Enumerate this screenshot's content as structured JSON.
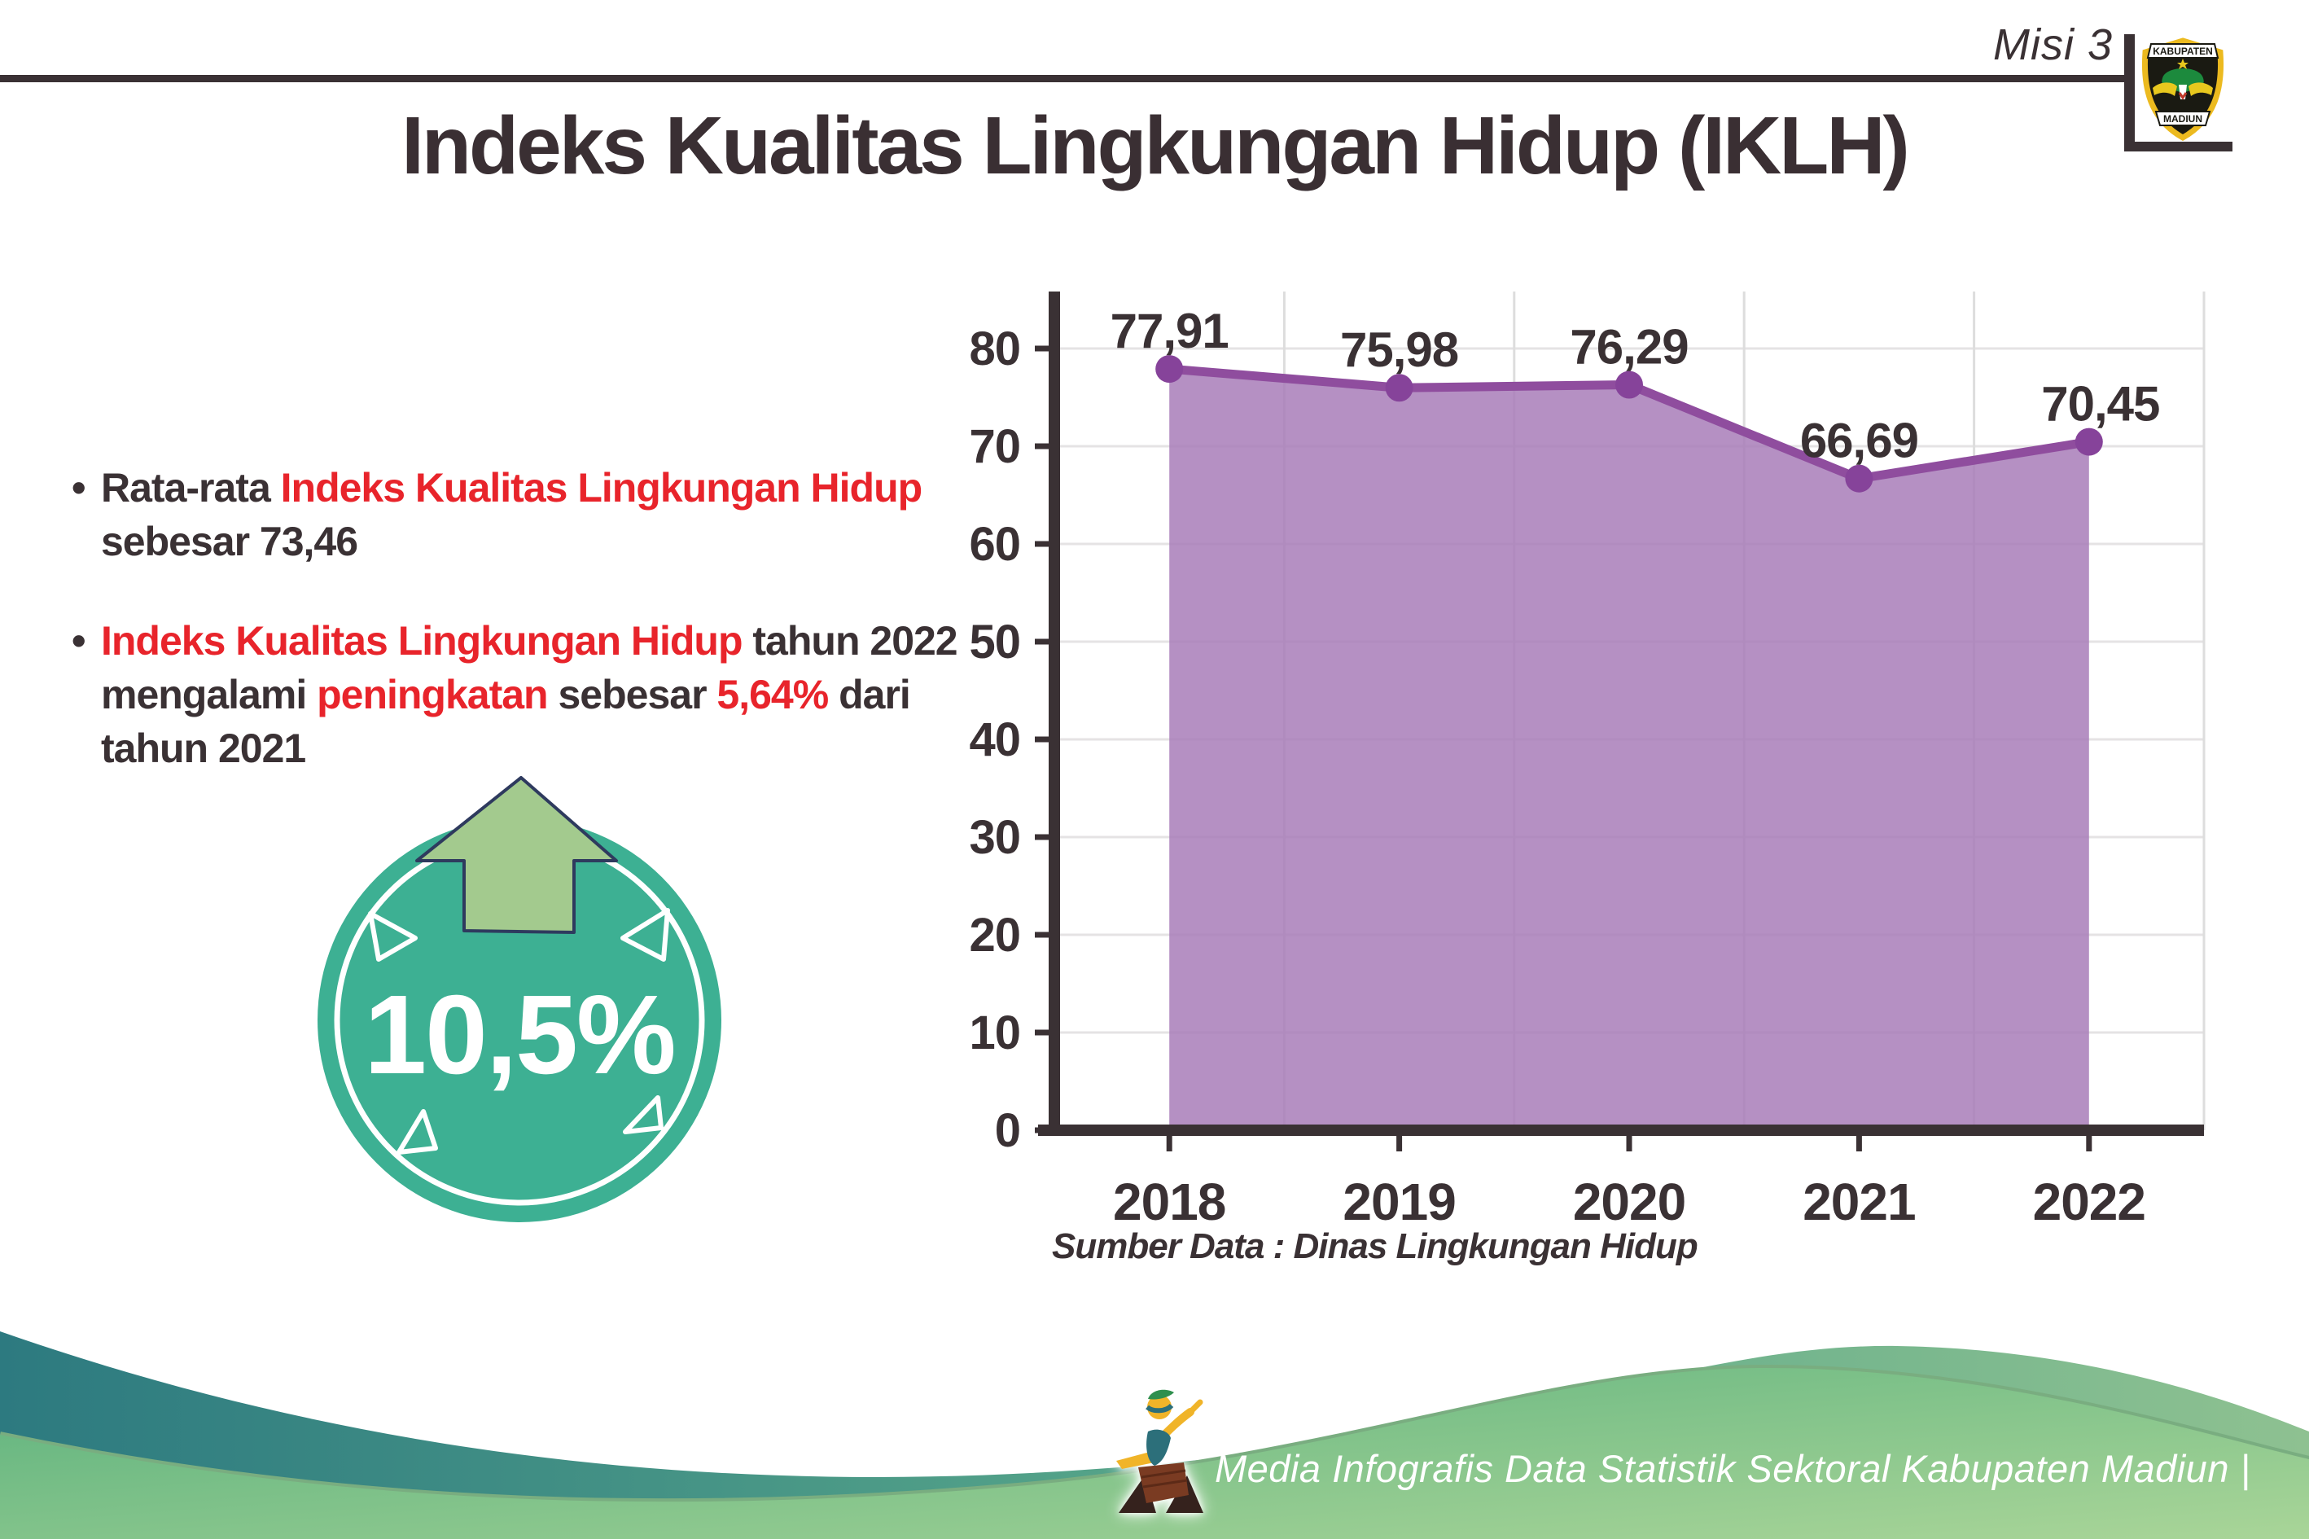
{
  "header": {
    "mission_label": "Misi 3",
    "title": "Indeks Kualitas Lingkungan Hidup (IKLH)",
    "logo": {
      "name": "kabupaten-madiun-emblem",
      "top_banner": "KABUPATEN",
      "bottom_banner": "MADIUN"
    }
  },
  "bullets": {
    "marker": "•",
    "items": [
      {
        "segments": [
          {
            "t": "Rata-rata ",
            "c": "dark"
          },
          {
            "t": "Indeks Kualitas Lingkungan Hidup",
            "c": "red"
          },
          {
            "t": " sebesar 73,46",
            "c": "dark"
          }
        ]
      },
      {
        "segments": [
          {
            "t": "Indeks Kualitas Lingkungan Hidup",
            "c": "red"
          },
          {
            "t": " tahun 2022 mengalami ",
            "c": "dark"
          },
          {
            "t": "peningkatan",
            "c": "red"
          },
          {
            "t": " sebesar ",
            "c": "dark"
          },
          {
            "t": "5,64%",
            "c": "red"
          },
          {
            "t": " dari tahun 2021",
            "c": "dark"
          }
        ]
      }
    ]
  },
  "badge": {
    "value": "10,5%",
    "icon": "arrow-up-icon",
    "circle_color": "#3db093",
    "arrow_color": "#a3ca8e",
    "arrow_outline": "#2e3a5e"
  },
  "chart_data": {
    "type": "area",
    "categories": [
      "2018",
      "2019",
      "2020",
      "2021",
      "2022"
    ],
    "values": [
      77.91,
      75.98,
      76.29,
      66.69,
      70.45
    ],
    "value_labels": [
      "77,91",
      "75,98",
      "76,29",
      "66,69",
      "70,45"
    ],
    "ylim": [
      0,
      80
    ],
    "ytick_step": 10,
    "grid": true,
    "legend": false,
    "xlabel": "",
    "ylabel": "",
    "line_color": "#8f4d9e",
    "fill_color": "#a87cb8",
    "point_color": "#86439a",
    "axis_color": "#3a3134",
    "grid_color": "#e5e3e4",
    "label_color": "#3a3134"
  },
  "source_note": "Sumber Data : Dinas Lingkungan Hidup",
  "footer": {
    "text": "Media Infografis Data Statistik Sektoral Kabupaten Madiun |",
    "mascot": "dancer-mascot-icon",
    "wave_teal": "#2d7a80",
    "wave_green_light": "#a9d598"
  }
}
